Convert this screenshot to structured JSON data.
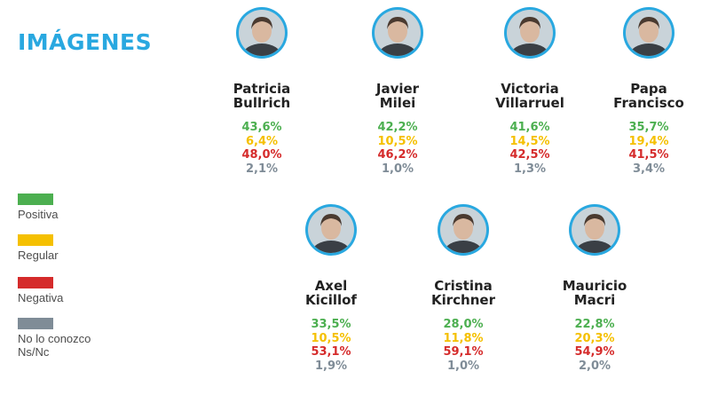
{
  "title": "IMÁGENES",
  "colors": {
    "positiva": "#4caf50",
    "regular": "#f5c000",
    "negativa": "#d52b2b",
    "no_conozco": "#7f8c97",
    "accent": "#29a8e0"
  },
  "legend": [
    {
      "key": "positiva",
      "label": "Positiva"
    },
    {
      "key": "regular",
      "label": "Regular"
    },
    {
      "key": "negativa",
      "label": "Negativa"
    },
    {
      "key": "no_conozco",
      "label": "No lo conozco\nNs/Nc"
    }
  ],
  "chart_data": {
    "type": "table",
    "title": "IMÁGENES",
    "categories": [
      "Positiva",
      "Regular",
      "Negativa",
      "No lo conozco Ns/Nc"
    ],
    "people": [
      {
        "name": "Patricia\nBullrich",
        "values": [
          "43,6%",
          "6,4%",
          "48,0%",
          "2,1%"
        ]
      },
      {
        "name": "Javier\nMilei",
        "values": [
          "42,2%",
          "10,5%",
          "46,2%",
          "1,0%"
        ]
      },
      {
        "name": "Victoria\nVillarruel",
        "values": [
          "41,6%",
          "14,5%",
          "42,5%",
          "1,3%"
        ]
      },
      {
        "name": "Papa\nFrancisco",
        "values": [
          "35,7%",
          "19,4%",
          "41,5%",
          "3,4%"
        ]
      },
      {
        "name": "Axel\nKicillof",
        "values": [
          "33,5%",
          "10,5%",
          "53,1%",
          "1,9%"
        ]
      },
      {
        "name": "Cristina\nKirchner",
        "values": [
          "28,0%",
          "11,8%",
          "59,1%",
          "1,0%"
        ]
      },
      {
        "name": "Mauricio\nMacri",
        "values": [
          "22,8%",
          "20,3%",
          "54,9%",
          "2,0%"
        ]
      }
    ]
  }
}
